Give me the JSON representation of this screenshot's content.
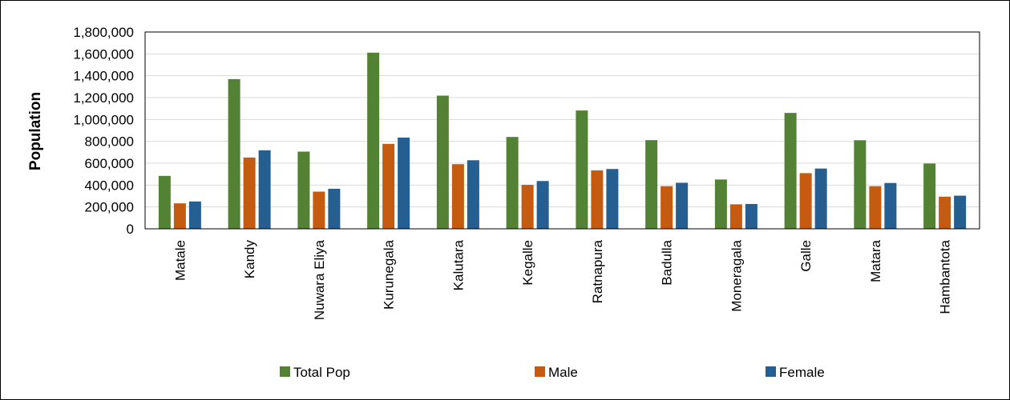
{
  "chart_data": {
    "type": "bar",
    "title": "",
    "xlabel": "",
    "ylabel": "Population",
    "ylim": [
      0,
      1800000
    ],
    "ytick_step": 200000,
    "grid": true,
    "legend_position": "bottom",
    "categories": [
      "Matale",
      "Kandy",
      "Nuwara Eliya",
      "Kurunegala",
      "Kalutara",
      "Kegalle",
      "Ratnapura",
      "Badulla",
      "Moneragala",
      "Galle",
      "Matara",
      "Hambantota"
    ],
    "series": [
      {
        "name": "Total Pop",
        "color": "#548235",
        "values": [
          484000,
          1369000,
          706000,
          1611000,
          1218000,
          840000,
          1082000,
          811000,
          451000,
          1060000,
          810000,
          597000
        ]
      },
      {
        "name": "Male",
        "color": "#c55a11",
        "values": [
          233000,
          652000,
          340000,
          777000,
          591000,
          402000,
          534000,
          390000,
          224000,
          509000,
          390000,
          294000
        ]
      },
      {
        "name": "Female",
        "color": "#255e91",
        "values": [
          250000,
          718000,
          366000,
          834000,
          627000,
          437000,
          547000,
          421000,
          227000,
          551000,
          419000,
          303000
        ]
      }
    ]
  }
}
